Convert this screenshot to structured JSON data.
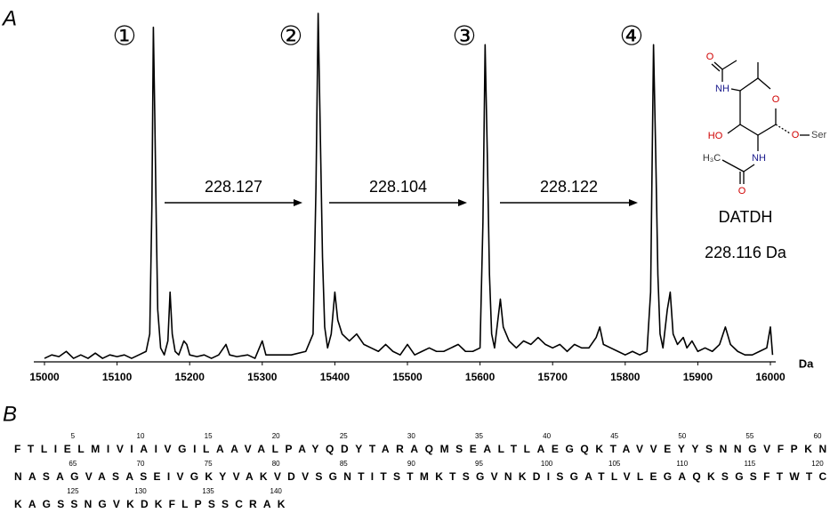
{
  "panel_labels": [
    "A",
    "B"
  ],
  "chart_data": {
    "type": "line",
    "x_label": "Da",
    "peak_labels": [
      "①",
      "②",
      "③",
      "④"
    ],
    "mass_shifts": [
      "228.127",
      "228.104",
      "228.122"
    ],
    "modification": {
      "name": "DATDH",
      "mass": "228.116 Da",
      "atoms": [
        "O",
        "NH",
        "HO",
        "O",
        "O",
        "Ser",
        "NH",
        "H₃C",
        "O"
      ]
    },
    "xlim": [
      15000,
      16000
    ],
    "ylim": [
      0,
      100
    ],
    "xticks": [
      15000,
      15100,
      15200,
      15300,
      15400,
      15500,
      15600,
      15700,
      15800,
      15900,
      16000
    ],
    "series": [
      {
        "color": "#000000",
        "x": [
          15000,
          15010,
          15020,
          15030,
          15040,
          15050,
          15060,
          15070,
          15080,
          15090,
          15100,
          15110,
          15120,
          15130,
          15140,
          15145,
          15148,
          15150,
          15152,
          15154,
          15156,
          15160,
          15165,
          15170,
          15173,
          15176,
          15180,
          15185,
          15192,
          15196,
          15200,
          15210,
          15220,
          15230,
          15240,
          15250,
          15255,
          15265,
          15280,
          15290,
          15300,
          15305,
          15320,
          15340,
          15360,
          15370,
          15374,
          15377,
          15380,
          15383,
          15386,
          15390,
          15395,
          15400,
          15404,
          15410,
          15420,
          15430,
          15440,
          15450,
          15460,
          15470,
          15480,
          15490,
          15500,
          15510,
          15520,
          15530,
          15540,
          15550,
          15560,
          15570,
          15580,
          15590,
          15600,
          15604,
          15607,
          15610,
          15613,
          15616,
          15620,
          15628,
          15632,
          15640,
          15650,
          15660,
          15670,
          15680,
          15690,
          15700,
          15710,
          15720,
          15730,
          15740,
          15750,
          15760,
          15765,
          15770,
          15780,
          15790,
          15800,
          15810,
          15820,
          15830,
          15835,
          15839,
          15842,
          15845,
          15848,
          15852,
          15858,
          15862,
          15866,
          15872,
          15880,
          15885,
          15892,
          15900,
          15910,
          15920,
          15930,
          15938,
          15945,
          15955,
          15965,
          15975,
          15985,
          15995,
          16000,
          16003
        ],
        "values": [
          1,
          2,
          1.5,
          3,
          1,
          2,
          1,
          2.5,
          1,
          2,
          1.5,
          2,
          1,
          2,
          3,
          8,
          45,
          96,
          70,
          40,
          15,
          4,
          2,
          6,
          20,
          8,
          3,
          2,
          6,
          5,
          2,
          1.5,
          2,
          1,
          2,
          5,
          2,
          1.5,
          2,
          1,
          6,
          2,
          2,
          2,
          3,
          8,
          50,
          100,
          65,
          30,
          10,
          4,
          8,
          20,
          12,
          8,
          6,
          8,
          5,
          4,
          3,
          5,
          3,
          2,
          5,
          2,
          3,
          4,
          3,
          3,
          4,
          5,
          3,
          3,
          4,
          40,
          91,
          60,
          25,
          8,
          4,
          18,
          10,
          6,
          4,
          6,
          5,
          7,
          5,
          4,
          5,
          3,
          5,
          4,
          4,
          7,
          10,
          5,
          4,
          3,
          2,
          3,
          2,
          3,
          20,
          91,
          60,
          25,
          8,
          4,
          15,
          20,
          8,
          5,
          7,
          4,
          6,
          3,
          4,
          3,
          5,
          10,
          5,
          3,
          2,
          2,
          3,
          4,
          10,
          2
        ]
      }
    ]
  },
  "sequence": {
    "rows": [
      "FTLIELMIVIAIVGILAAVALPAYQDYTARAQMSEALTLAEGQKTAVVEYYSNNGVFPKN",
      "NASAGVASASEIVGKYVAKVDVSGNTITSTMKTSGVNKDISGATLVLEGAQKSGSFTWTC",
      "KAGSSNGVKDKFLPSSCRAK"
    ],
    "positions": [
      5,
      10,
      15,
      20,
      25,
      30,
      35,
      40,
      45,
      50,
      55,
      60,
      65,
      70,
      75,
      80,
      85,
      90,
      95,
      100,
      105,
      110,
      115,
      120,
      125,
      130,
      135,
      140
    ]
  }
}
